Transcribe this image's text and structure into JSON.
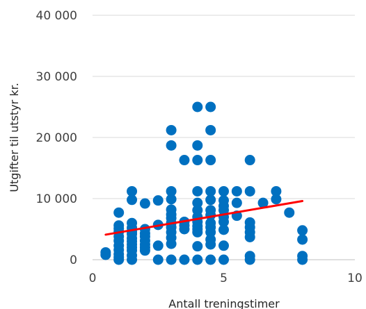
{
  "chart_data": {
    "type": "scatter",
    "title": "",
    "xlabel": "Antall treningstimer",
    "ylabel": "Utgifter til utstyr kr.",
    "xlim": [
      0,
      10
    ],
    "ylim": [
      0,
      40000
    ],
    "x_ticks": [
      0,
      5,
      10
    ],
    "x_tick_labels": [
      "0",
      "5",
      "10"
    ],
    "y_ticks": [
      0,
      10000,
      20000,
      30000,
      40000
    ],
    "y_tick_labels": [
      "0",
      "10 000",
      "20 000",
      "30 000",
      "40 000"
    ],
    "grid": "horizontal",
    "legend": "none",
    "series": [
      {
        "marker_color": "#0070C0",
        "points": [
          [
            0.5,
            800
          ],
          [
            0.5,
            1200
          ],
          [
            1,
            0
          ],
          [
            1,
            400
          ],
          [
            1,
            900
          ],
          [
            1,
            1600
          ],
          [
            1,
            2300
          ],
          [
            1,
            3100
          ],
          [
            1,
            3800
          ],
          [
            1,
            4600
          ],
          [
            1,
            5100
          ],
          [
            1,
            5600
          ],
          [
            1,
            7700
          ],
          [
            1.5,
            0
          ],
          [
            1.5,
            700
          ],
          [
            1.5,
            1500
          ],
          [
            1.5,
            2000
          ],
          [
            1.5,
            2500
          ],
          [
            1.5,
            3000
          ],
          [
            1.5,
            3500
          ],
          [
            1.5,
            4200
          ],
          [
            1.5,
            4600
          ],
          [
            1.5,
            5200
          ],
          [
            1.5,
            6000
          ],
          [
            1.5,
            9800
          ],
          [
            1.5,
            11200
          ],
          [
            2,
            1500
          ],
          [
            2,
            2000
          ],
          [
            2,
            2500
          ],
          [
            2,
            3100
          ],
          [
            2,
            3800
          ],
          [
            2,
            4300
          ],
          [
            2,
            5000
          ],
          [
            2,
            9200
          ],
          [
            2.5,
            0
          ],
          [
            2.5,
            2300
          ],
          [
            2.5,
            5700
          ],
          [
            2.5,
            9700
          ],
          [
            3,
            0
          ],
          [
            3,
            2600
          ],
          [
            3,
            3600
          ],
          [
            3,
            4500
          ],
          [
            3,
            5300
          ],
          [
            3,
            6000
          ],
          [
            3,
            6800
          ],
          [
            3,
            7400
          ],
          [
            3,
            8200
          ],
          [
            3,
            9900
          ],
          [
            3,
            11200
          ],
          [
            3,
            18700
          ],
          [
            3,
            21200
          ],
          [
            3.5,
            0
          ],
          [
            3.5,
            5000
          ],
          [
            3.5,
            5600
          ],
          [
            3.5,
            6200
          ],
          [
            3.5,
            16300
          ],
          [
            4,
            0
          ],
          [
            4,
            2200
          ],
          [
            4,
            4500
          ],
          [
            4,
            5000
          ],
          [
            4,
            5500
          ],
          [
            4,
            6200
          ],
          [
            4,
            7000
          ],
          [
            4,
            8100
          ],
          [
            4,
            9300
          ],
          [
            4,
            11200
          ],
          [
            4,
            16300
          ],
          [
            4,
            18700
          ],
          [
            4,
            25000
          ],
          [
            4.5,
            0
          ],
          [
            4.5,
            2500
          ],
          [
            4.5,
            3300
          ],
          [
            4.5,
            4500
          ],
          [
            4.5,
            5300
          ],
          [
            4.5,
            6000
          ],
          [
            4.5,
            7300
          ],
          [
            4.5,
            8100
          ],
          [
            4.5,
            9800
          ],
          [
            4.5,
            11200
          ],
          [
            4.5,
            16300
          ],
          [
            4.5,
            21200
          ],
          [
            4.5,
            25000
          ],
          [
            5,
            0
          ],
          [
            5,
            2300
          ],
          [
            5,
            4900
          ],
          [
            5,
            6200
          ],
          [
            5,
            7000
          ],
          [
            5,
            8100
          ],
          [
            5,
            8800
          ],
          [
            5,
            9700
          ],
          [
            5,
            11200
          ],
          [
            5.5,
            7200
          ],
          [
            5.5,
            9300
          ],
          [
            5.5,
            11200
          ],
          [
            6,
            0
          ],
          [
            6,
            600
          ],
          [
            6,
            3700
          ],
          [
            6,
            4500
          ],
          [
            6,
            5300
          ],
          [
            6,
            6100
          ],
          [
            6,
            11200
          ],
          [
            6,
            16300
          ],
          [
            6.5,
            9300
          ],
          [
            7,
            9900
          ],
          [
            7,
            11200
          ],
          [
            7.5,
            7700
          ],
          [
            8,
            0
          ],
          [
            8,
            600
          ],
          [
            8,
            3300
          ],
          [
            8,
            4800
          ]
        ]
      },
      {
        "type": "line",
        "color": "#FF0000",
        "points": [
          [
            0.5,
            4100
          ],
          [
            8,
            9600
          ]
        ]
      }
    ]
  }
}
